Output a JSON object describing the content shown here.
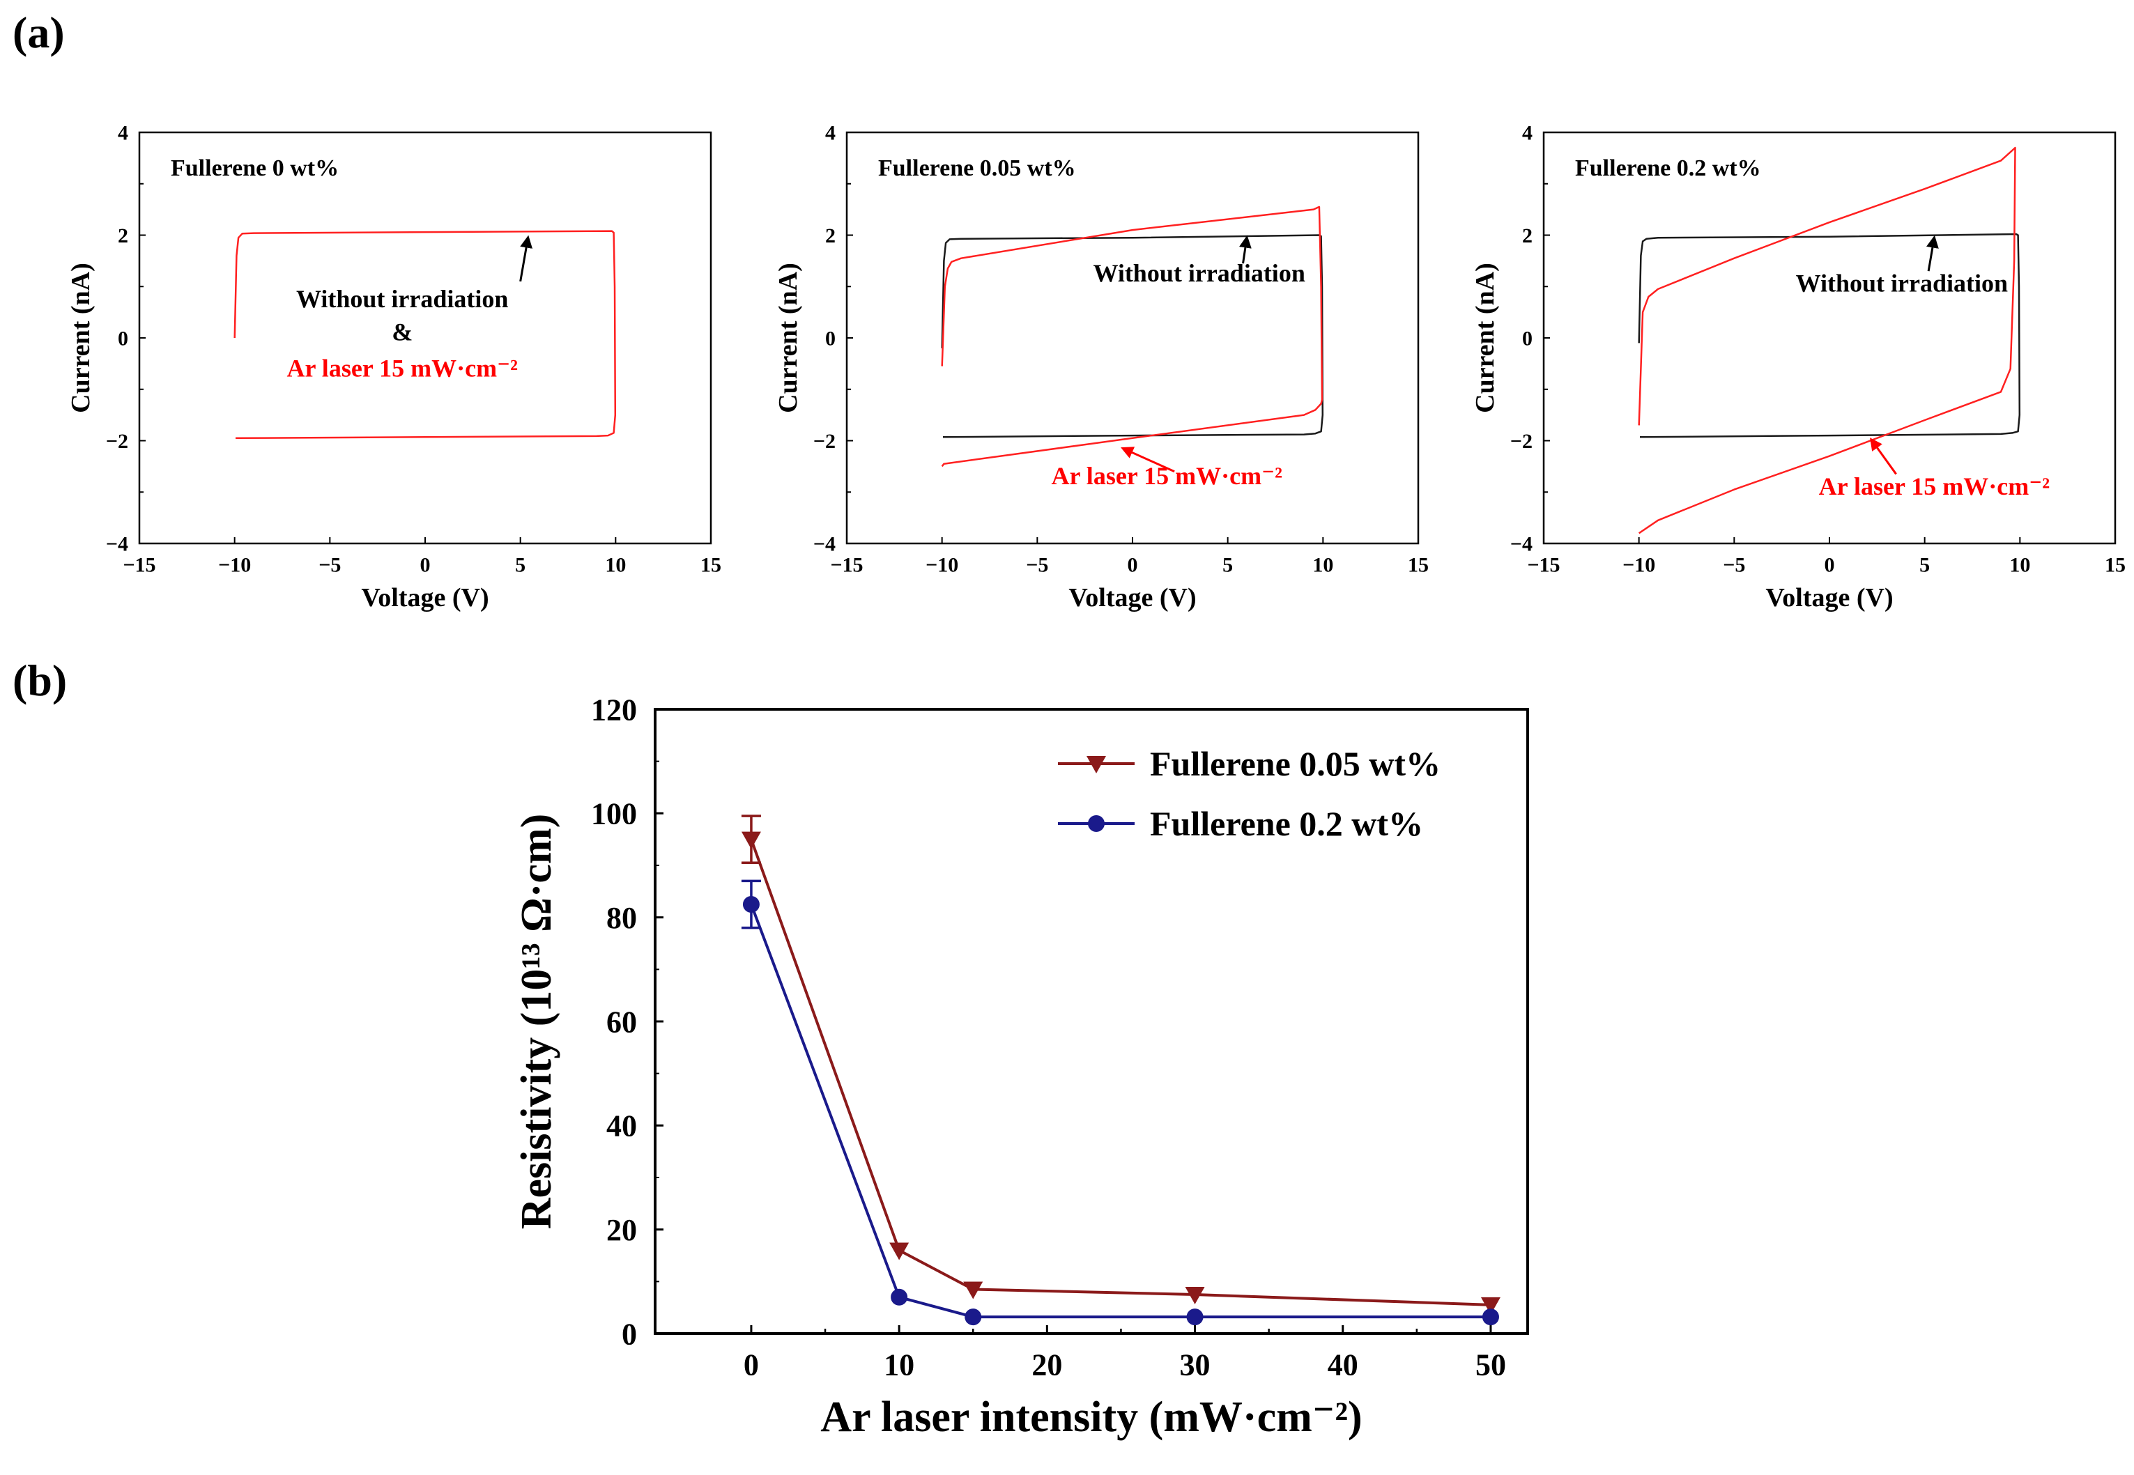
{
  "panel_labels": {
    "a": "(a)",
    "b": "(b)"
  },
  "chart_data": [
    {
      "type": "line",
      "panel": "a1",
      "title": "Fullerene 0 wt%",
      "xlabel": "Voltage (V)",
      "ylabel": "Current (nA)",
      "xlim": [
        -15,
        15
      ],
      "ylim": [
        -4,
        4
      ],
      "xticks": [
        -15,
        -10,
        -5,
        0,
        5,
        10,
        15
      ],
      "yticks": [
        -4,
        -2,
        0,
        2,
        4
      ],
      "colors": {
        "no_irr": "#1a1a1a",
        "laser": "#ff2020"
      },
      "series": [
        {
          "name": "Without irradiation",
          "color": "#ff2020",
          "x": [
            -10,
            -9.9,
            -9.8,
            -9.6,
            -9.0,
            0,
            9.8,
            9.9,
            9.95,
            9.98,
            9.9,
            9.6,
            9.0,
            0,
            -9.8,
            -9.95
          ],
          "y": [
            0.0,
            1.6,
            1.95,
            2.03,
            2.04,
            2.06,
            2.08,
            2.05,
            1.0,
            -1.5,
            -1.85,
            -1.9,
            -1.91,
            -1.93,
            -1.95,
            -1.95
          ]
        }
      ],
      "annotations": [
        {
          "text": "Without irradiation",
          "color": "#000000",
          "x": -1.2,
          "y": 0.6
        },
        {
          "text": "&",
          "color": "#000000",
          "x": -1.2,
          "y": -0.05
        },
        {
          "text": "Ar laser 15 mW·cm⁻²",
          "color": "#ff0000",
          "x": -1.2,
          "y": -0.75
        }
      ],
      "arrows": [
        {
          "from": [
            5.0,
            1.1
          ],
          "to": [
            5.4,
            1.95
          ]
        }
      ]
    },
    {
      "type": "line",
      "panel": "a2",
      "title": "Fullerene 0.05 wt%",
      "xlabel": "Voltage (V)",
      "ylabel": "Current (nA)",
      "xlim": [
        -15,
        15
      ],
      "ylim": [
        -4,
        4
      ],
      "xticks": [
        -15,
        -10,
        -5,
        0,
        5,
        10,
        15
      ],
      "yticks": [
        -4,
        -2,
        0,
        2,
        4
      ],
      "series": [
        {
          "name": "Without irradiation",
          "color": "#1a1a1a",
          "x": [
            -10,
            -9.9,
            -9.8,
            -9.6,
            -9.0,
            0,
            9.8,
            9.9,
            9.95,
            9.98,
            9.9,
            9.6,
            9.0,
            0,
            -9.8,
            -9.95
          ],
          "y": [
            -0.2,
            1.5,
            1.85,
            1.92,
            1.93,
            1.95,
            2.0,
            1.98,
            1.0,
            -1.5,
            -1.82,
            -1.86,
            -1.88,
            -1.9,
            -1.93,
            -1.93
          ]
        },
        {
          "name": "Ar laser 15 mW·cm⁻²",
          "color": "#ff2020",
          "x": [
            -10,
            -9.85,
            -9.7,
            -9.5,
            -9.0,
            0,
            9.5,
            9.8,
            9.9,
            9.95,
            9.9,
            9.6,
            9.0,
            0,
            -9.9,
            -10
          ],
          "y": [
            -0.55,
            1.0,
            1.35,
            1.48,
            1.55,
            2.1,
            2.5,
            2.55,
            1.0,
            -1.2,
            -1.28,
            -1.4,
            -1.5,
            -1.95,
            -2.45,
            -2.5
          ]
        }
      ],
      "annotations": [
        {
          "text": "Without irradiation",
          "color": "#000000",
          "x": 3.5,
          "y": 1.1
        },
        {
          "text": "Ar laser 15 mW·cm⁻²",
          "color": "#ff0000",
          "x": 1.8,
          "y": -2.85
        }
      ],
      "arrows": [
        {
          "from": [
            5.8,
            1.45
          ],
          "to": [
            6.0,
            1.95
          ]
        },
        {
          "from": [
            2.2,
            -2.6
          ],
          "to": [
            -0.5,
            -2.15
          ]
        }
      ]
    },
    {
      "type": "line",
      "panel": "a3",
      "title": "Fullerene 0.2 wt%",
      "xlabel": "Voltage (V)",
      "ylabel": "Current (nA)",
      "xlim": [
        -15,
        15
      ],
      "ylim": [
        -4,
        4
      ],
      "xticks": [
        -15,
        -10,
        -5,
        0,
        5,
        10,
        15
      ],
      "yticks": [
        -4,
        -2,
        0,
        2,
        4
      ],
      "series": [
        {
          "name": "Without irradiation",
          "color": "#1a1a1a",
          "x": [
            -10,
            -9.9,
            -9.8,
            -9.6,
            -9.0,
            0,
            9.8,
            9.9,
            9.95,
            9.98,
            9.9,
            9.6,
            9.0,
            0,
            -9.8,
            -9.95
          ],
          "y": [
            -0.1,
            1.6,
            1.88,
            1.93,
            1.95,
            1.97,
            2.02,
            2.0,
            1.0,
            -1.5,
            -1.82,
            -1.85,
            -1.87,
            -1.9,
            -1.93,
            -1.93
          ]
        },
        {
          "name": "Ar laser 15 mW·cm⁻²",
          "color": "#ff2020",
          "x": [
            -10,
            -9.8,
            -9.5,
            -9,
            -5,
            0,
            5,
            9,
            9.6,
            9.75,
            9.7,
            9.5,
            9,
            5,
            0,
            -5,
            -9,
            -10
          ],
          "y": [
            -1.7,
            0.5,
            0.8,
            0.95,
            1.55,
            2.25,
            2.9,
            3.45,
            3.65,
            3.7,
            1.5,
            -0.6,
            -1.05,
            -1.6,
            -2.3,
            -2.95,
            -3.55,
            -3.8
          ]
        }
      ],
      "annotations": [
        {
          "text": "Without irradiation",
          "color": "#000000",
          "x": 3.8,
          "y": 0.9
        },
        {
          "text": "Ar laser 15 mW·cm⁻²",
          "color": "#ff0000",
          "x": 5.5,
          "y": -3.05
        }
      ],
      "arrows": [
        {
          "from": [
            5.2,
            1.3
          ],
          "to": [
            5.5,
            1.95
          ]
        },
        {
          "from": [
            3.5,
            -2.65
          ],
          "to": [
            2.2,
            -1.98
          ]
        }
      ]
    },
    {
      "type": "line",
      "panel": "b",
      "xlabel": "Ar laser intensity (mW·cm⁻²)",
      "ylabel": "Resistivity (10¹³ Ω·cm)",
      "xlim": [
        -6.5,
        52.5
      ],
      "ylim": [
        0,
        120
      ],
      "xticks": [
        0,
        10,
        20,
        30,
        40,
        50
      ],
      "yticks": [
        0,
        20,
        40,
        60,
        80,
        100,
        120
      ],
      "legend_position": "top-right",
      "series": [
        {
          "name": "Fullerene 0.05 wt%",
          "color": "#8b1a1a",
          "marker": "triangle-down",
          "x": [
            0,
            10,
            15,
            30,
            50
          ],
          "y": [
            95,
            16,
            8.5,
            7.5,
            5.5
          ],
          "err": [
            4.5,
            0.8,
            0.6,
            0.5,
            0.6
          ]
        },
        {
          "name": "Fullerene 0.2 wt%",
          "color": "#1a1a8b",
          "marker": "circle",
          "x": [
            0,
            10,
            15,
            30,
            50
          ],
          "y": [
            82.5,
            7,
            3.2,
            3.2,
            3.2
          ],
          "err": [
            4.5,
            0.5,
            0.3,
            0.3,
            0.3
          ]
        }
      ]
    }
  ]
}
